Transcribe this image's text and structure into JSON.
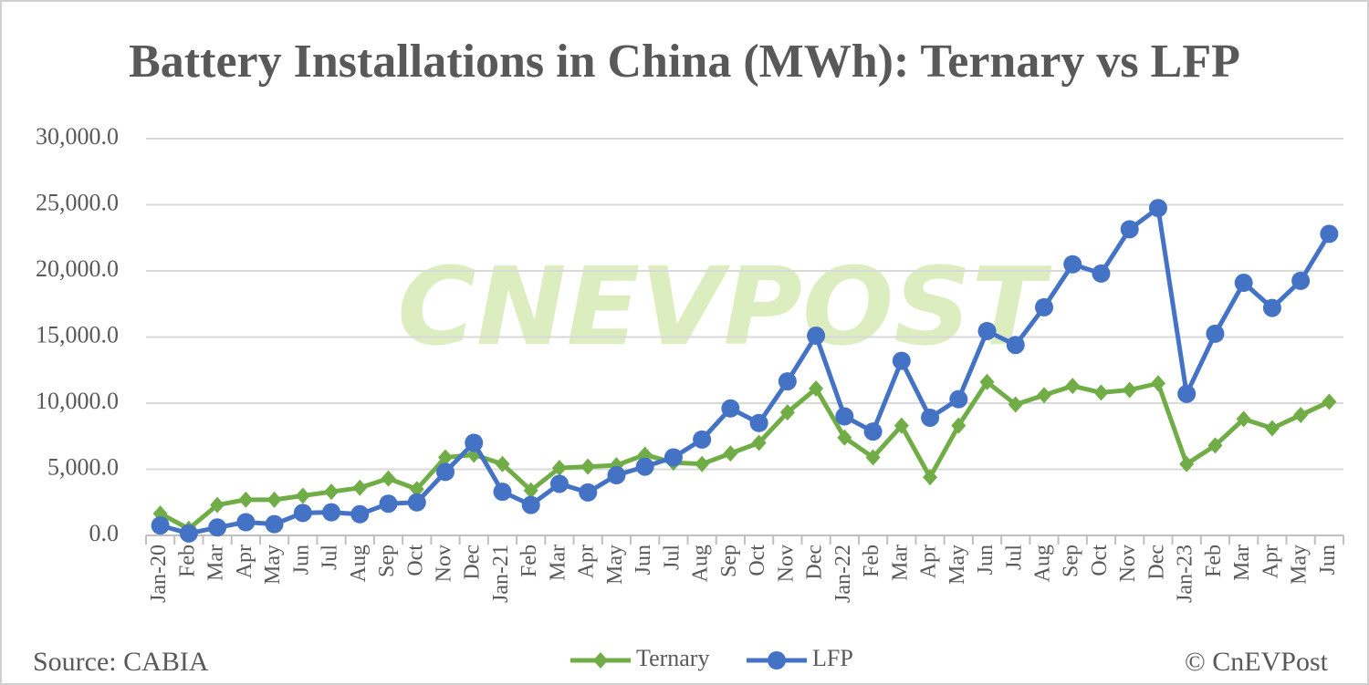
{
  "chart_data": {
    "type": "line",
    "title": "Battery Installations in China (MWh): Ternary vs LFP",
    "watermark": "CNEVPOST",
    "source": "Source: CABIA",
    "credit": "© CnEVPost",
    "categories": [
      "Jan-20",
      "Feb",
      "Mar",
      "Apr",
      "May",
      "Jun",
      "Jul",
      "Aug",
      "Sep",
      "Oct",
      "Nov",
      "Dec",
      "Jan-21",
      "Feb",
      "Mar",
      "Apr",
      "May",
      "Jun",
      "Jul",
      "Aug",
      "Sep",
      "Oct",
      "Nov",
      "Dec",
      "Jan-22",
      "Feb",
      "Mar",
      "Apr",
      "May",
      "Jun",
      "Jul",
      "Aug",
      "Sep",
      "Oct",
      "Nov",
      "Dec",
      "Jan-23",
      "Feb",
      "Mar",
      "Apr",
      "May",
      "Jun"
    ],
    "series": [
      {
        "name": "Ternary",
        "color": "#70ad47",
        "marker": "diamond",
        "values": [
          1650,
          500,
          2300,
          2700,
          2700,
          3000,
          3300,
          3600,
          4300,
          3500,
          5900,
          6100,
          5400,
          3400,
          5100,
          5200,
          5300,
          6100,
          5500,
          5400,
          6200,
          7000,
          9300,
          11100,
          7400,
          5900,
          8300,
          4400,
          8300,
          11600,
          9900,
          10600,
          11300,
          10800,
          11000,
          11500,
          5400,
          6800,
          8800,
          8100,
          9100,
          10100
        ]
      },
      {
        "name": "LFP",
        "color": "#4472c4",
        "marker": "circle",
        "values": [
          750,
          150,
          600,
          1000,
          850,
          1700,
          1750,
          1600,
          2400,
          2500,
          4800,
          7000,
          3300,
          2300,
          3900,
          3250,
          4550,
          5200,
          5900,
          7250,
          9600,
          8500,
          11650,
          15100,
          9000,
          7850,
          13200,
          8900,
          10300,
          15450,
          14400,
          17250,
          20500,
          19800,
          23150,
          24750,
          10700,
          15250,
          19100,
          17200,
          19250,
          22800
        ]
      }
    ],
    "ylim": [
      0,
      30000
    ],
    "yticks": [
      {
        "value": 0,
        "label": "0.0"
      },
      {
        "value": 5000,
        "label": "5,000.0"
      },
      {
        "value": 10000,
        "label": "10,000.0"
      },
      {
        "value": 15000,
        "label": "15,000.0"
      },
      {
        "value": 20000,
        "label": "20,000.0"
      },
      {
        "value": 25000,
        "label": "25,000.0"
      },
      {
        "value": 30000,
        "label": "30,000.0"
      }
    ],
    "grid": true
  }
}
